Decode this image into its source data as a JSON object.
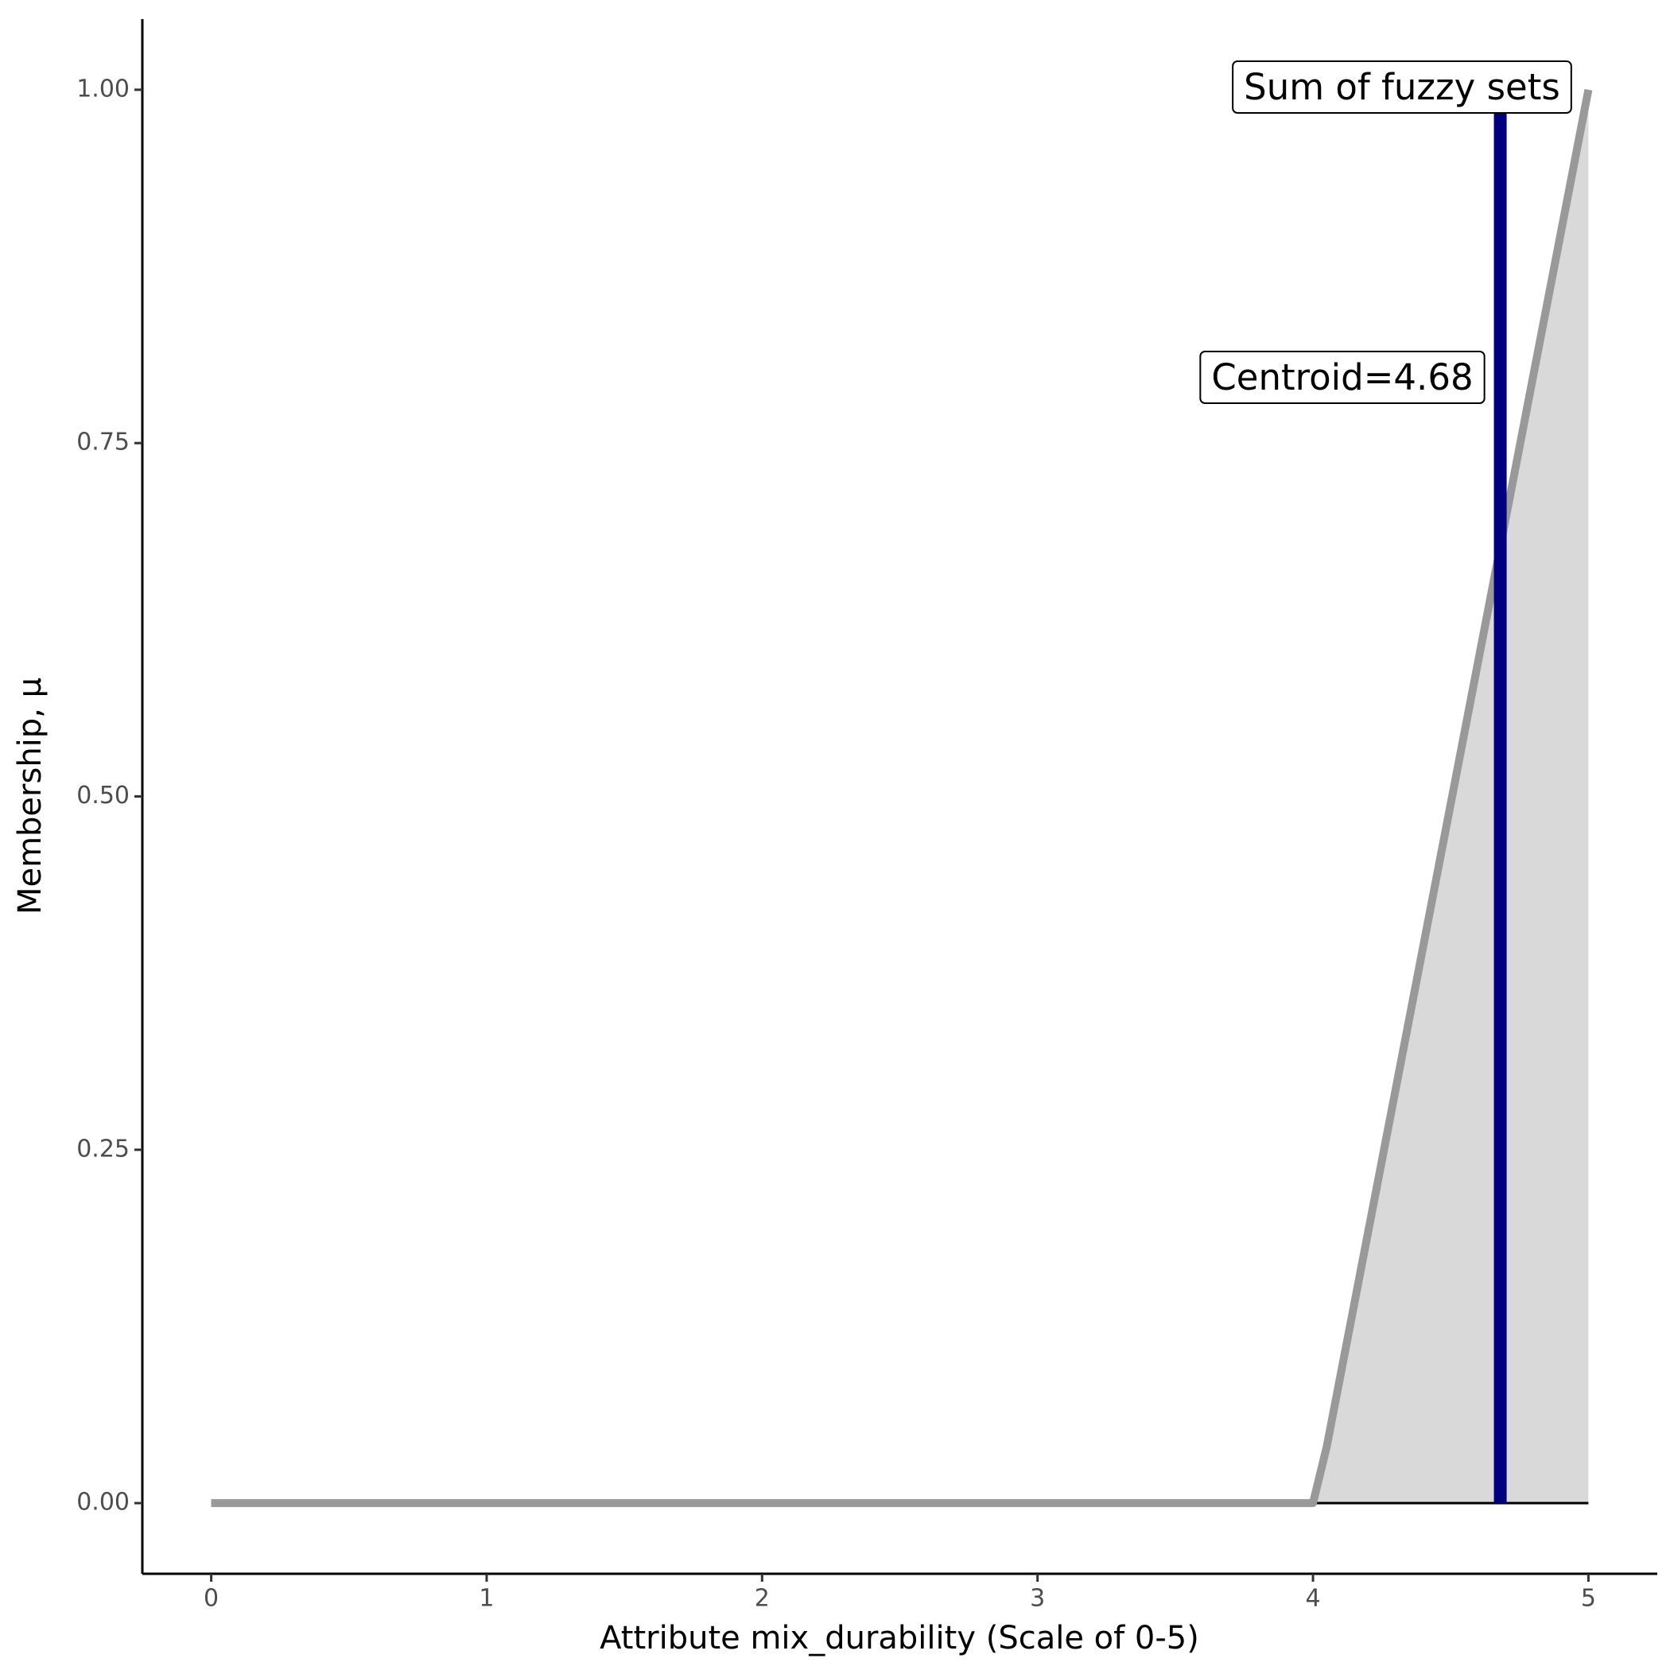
{
  "chart_data": {
    "type": "area",
    "x_label": "Attribute mix_durability (Scale of 0-5)",
    "y_label": "Membership, μ",
    "series": [
      {
        "name": "Sum of fuzzy sets",
        "color": "#999999",
        "fill": "#d9d9d9",
        "x": [
          0,
          4,
          4.05,
          5
        ],
        "values": [
          0,
          0,
          0.04,
          1
        ]
      }
    ],
    "centroid": {
      "x": 4.68,
      "ymin": 0,
      "ymax": 1,
      "color": "#000080"
    },
    "annotations": [
      "Sum of fuzzy sets",
      "Centroid=4.68"
    ],
    "xlim": [
      -0.25,
      5.25
    ],
    "xticks": [
      0,
      1,
      2,
      3,
      4,
      5
    ],
    "ylim": [
      -0.05,
      1.05
    ],
    "yticks": [
      {
        "value": 0,
        "label": "0.00"
      },
      {
        "value": 0.25,
        "label": "0.25"
      },
      {
        "value": 0.5,
        "label": "0.50"
      },
      {
        "value": 0.75,
        "label": "0.75"
      },
      {
        "value": 1,
        "label": "1.00"
      }
    ],
    "grid": false
  }
}
